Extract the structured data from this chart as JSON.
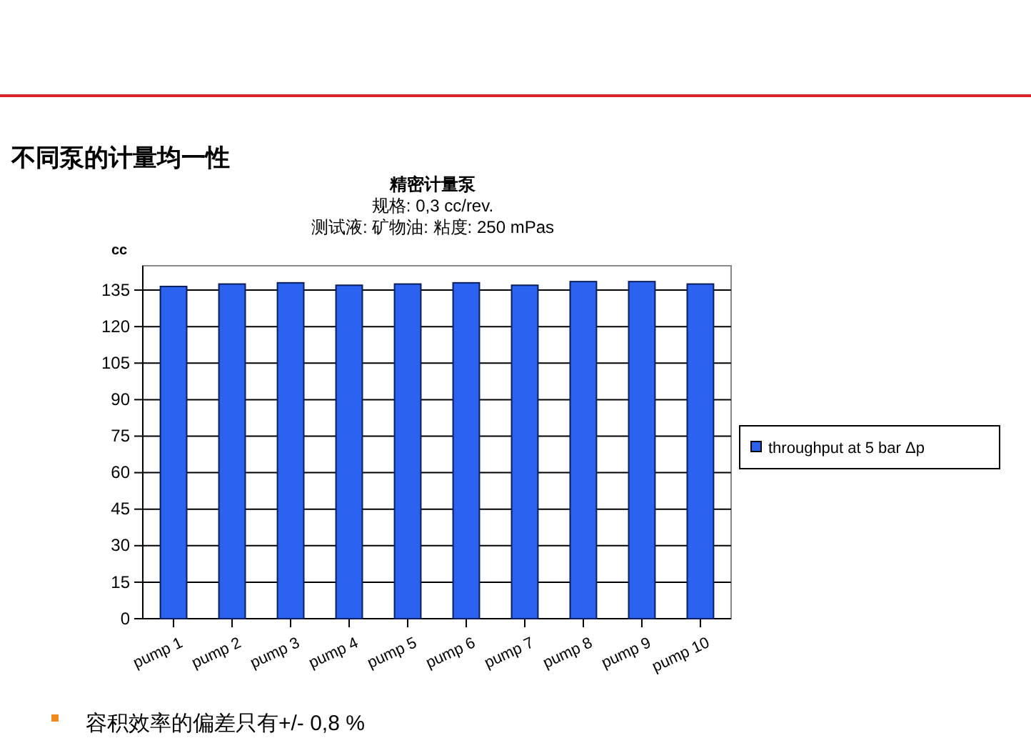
{
  "chart_data": {
    "type": "bar",
    "title": "精密计量泵",
    "subtitle": "规格: 0,3 cc/rev.\n测试液: 矿物油: 粘度: 250 mPas",
    "ylabel": "cc",
    "categories": [
      "pump 1",
      "pump 2",
      "pump 3",
      "pump 4",
      "pump 5",
      "pump 6",
      "pump 7",
      "pump 8",
      "pump 9",
      "pump 10"
    ],
    "series": [
      {
        "name": "throughput at 5 bar Δp",
        "color": "#2b63f0",
        "values": [
          136.5,
          137.5,
          138,
          137,
          137.5,
          138,
          137,
          138.5,
          138.5,
          137.5
        ]
      }
    ],
    "ylim": [
      0,
      145
    ],
    "yticks": [
      0,
      15,
      30,
      45,
      60,
      75,
      90,
      105,
      120,
      135
    ],
    "grid": "y",
    "legend": "right",
    "annotations": [
      "不同泵的计量均一性",
      "容积效率的偏差只有+/- 0,8 %"
    ]
  }
}
